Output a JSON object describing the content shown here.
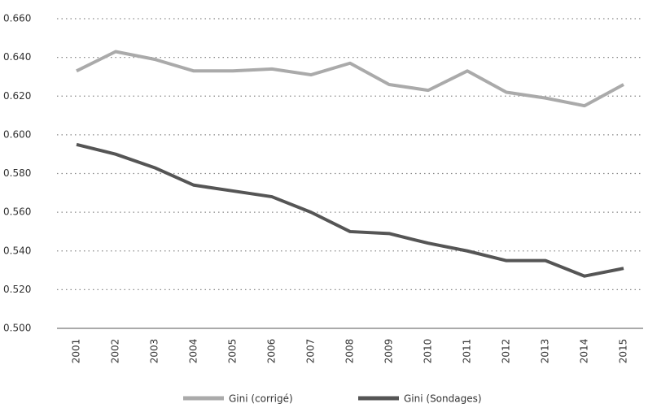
{
  "chart_data": {
    "type": "line",
    "categories": [
      "2001",
      "2002",
      "2003",
      "2004",
      "2005",
      "2006",
      "2007",
      "2008",
      "2009",
      "2010",
      "2011",
      "2012",
      "2013",
      "2014",
      "2015"
    ],
    "series": [
      {
        "name": "Gini (corrigé)",
        "color": "#aaaaaa",
        "values": [
          0.633,
          0.643,
          0.639,
          0.633,
          0.633,
          0.634,
          0.631,
          0.637,
          0.626,
          0.623,
          0.633,
          0.622,
          0.619,
          0.615,
          0.626
        ]
      },
      {
        "name": "Gini (Sondages)",
        "color": "#555555",
        "values": [
          0.595,
          0.59,
          0.583,
          0.574,
          0.571,
          0.568,
          0.56,
          0.55,
          0.549,
          0.544,
          0.54,
          0.535,
          0.535,
          0.527,
          0.531
        ]
      }
    ],
    "ylim": [
      0.5,
      0.66
    ],
    "yticks": [
      {
        "value": 0.5,
        "label": "0.500"
      },
      {
        "value": 0.52,
        "label": "0.520"
      },
      {
        "value": 0.54,
        "label": "0.540"
      },
      {
        "value": 0.56,
        "label": "0.560"
      },
      {
        "value": 0.58,
        "label": "0.580"
      },
      {
        "value": 0.6,
        "label": "0.600"
      },
      {
        "value": 0.62,
        "label": "0.620"
      },
      {
        "value": 0.64,
        "label": "0.640"
      },
      {
        "value": 0.66,
        "label": "0.660"
      }
    ],
    "grid": true
  }
}
